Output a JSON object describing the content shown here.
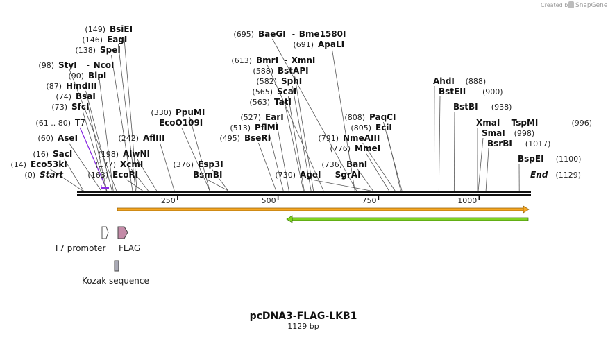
{
  "credit": {
    "text": "Created by",
    "brand": "SnapGene"
  },
  "plasmid": {
    "name": "pcDNA3-FLAG-LKB1",
    "length": "1129 bp",
    "bp": 1129
  },
  "axis": {
    "ticks": [
      250,
      500,
      750,
      1000
    ]
  },
  "colors": {
    "primer_color": "#8a2be2",
    "arrow_orange": "#f5a623",
    "arrow_green": "#7ed321"
  },
  "sites": [
    {
      "label": "Start",
      "pos": "(0)",
      "bp": 0,
      "italic": true
    },
    {
      "label": "Eco53kI",
      "pos": "(14)",
      "bp": 14
    },
    {
      "label": "SacI",
      "pos": "(16)",
      "bp": 16
    },
    {
      "label": "AseI",
      "pos": "(60)",
      "bp": 60
    },
    {
      "label": "T7",
      "pos": "(61 .. 80)",
      "bp": 70,
      "primer": true
    },
    {
      "label": "SfcI",
      "pos": "(73)",
      "bp": 73
    },
    {
      "label": "BsaI",
      "pos": "(74)",
      "bp": 74
    },
    {
      "label": "HindIII",
      "pos": "(87)",
      "bp": 87
    },
    {
      "label": "BlpI",
      "pos": "(90)",
      "bp": 90
    },
    {
      "label": "StyI",
      "pos": "(98)",
      "bp": 98,
      "partner": "NcoI"
    },
    {
      "label": "SpeI",
      "pos": "(138)",
      "bp": 138
    },
    {
      "label": "EagI",
      "pos": "(146)",
      "bp": 146
    },
    {
      "label": "BsiEI",
      "pos": "(149)",
      "bp": 149
    },
    {
      "label": "EcoRI",
      "pos": "(163)",
      "bp": 163
    },
    {
      "label": "XcmI",
      "pos": "(177)",
      "bp": 177
    },
    {
      "label": "AlwNI",
      "pos": "(198)",
      "bp": 198
    },
    {
      "label": "AflIII",
      "pos": "(242)",
      "bp": 242
    },
    {
      "label": "BsmBI",
      "pos": "",
      "bp": 376
    },
    {
      "label": "Esp3I",
      "pos": "(376)",
      "bp": 376
    },
    {
      "label": "EcoO109I",
      "pos": "",
      "bp": 330
    },
    {
      "label": "PpuMI",
      "pos": "(330)",
      "bp": 330
    },
    {
      "label": "BseRI",
      "pos": "(495)",
      "bp": 495
    },
    {
      "label": "PflMI",
      "pos": "(513)",
      "bp": 513
    },
    {
      "label": "EarI",
      "pos": "(527)",
      "bp": 527
    },
    {
      "label": "TatI",
      "pos": "(563)",
      "bp": 563
    },
    {
      "label": "ScaI",
      "pos": "(565)",
      "bp": 565
    },
    {
      "label": "SphI",
      "pos": "(582)",
      "bp": 582
    },
    {
      "label": "BstAPI",
      "pos": "(588)",
      "bp": 588
    },
    {
      "label": "BmrI",
      "pos": "(613)",
      "bp": 613,
      "partner": "XmnI"
    },
    {
      "label": "ApaLI",
      "pos": "(691)",
      "bp": 691
    },
    {
      "label": "BaeGI",
      "pos": "(695)",
      "bp": 695,
      "partner": "Bme1580I"
    },
    {
      "label": "AgeI",
      "pos": "(730)",
      "bp": 730,
      "partner": "SgrAI"
    },
    {
      "label": "BanI",
      "pos": "(736)",
      "bp": 736
    },
    {
      "label": "MmeI",
      "pos": "(776)",
      "bp": 776
    },
    {
      "label": "NmeAIII",
      "pos": "(791)",
      "bp": 791
    },
    {
      "label": "EciI",
      "pos": "(805)",
      "bp": 805
    },
    {
      "label": "PaqCI",
      "pos": "(808)",
      "bp": 808
    },
    {
      "label": "AhdI",
      "pos": "(888)",
      "bp": 888
    },
    {
      "label": "BstEII",
      "pos": "(900)",
      "bp": 900
    },
    {
      "label": "BstBI",
      "pos": "(938)",
      "bp": 938
    },
    {
      "label": "XmaI",
      "pos": "(996)",
      "bp": 996,
      "partner": "TspMI"
    },
    {
      "label": "SmaI",
      "pos": "(998)",
      "bp": 998
    },
    {
      "label": "BsrBI",
      "pos": "(1017)",
      "bp": 1017
    },
    {
      "label": "BspEI",
      "pos": "(1100)",
      "bp": 1100
    },
    {
      "label": "End",
      "pos": "(1129)",
      "bp": 1129,
      "italic": true
    }
  ],
  "features": [
    {
      "name": "T7 promoter",
      "kind": "promoter"
    },
    {
      "name": "FLAG",
      "kind": "cds"
    },
    {
      "name": "Kozak sequence",
      "kind": "misc"
    }
  ]
}
